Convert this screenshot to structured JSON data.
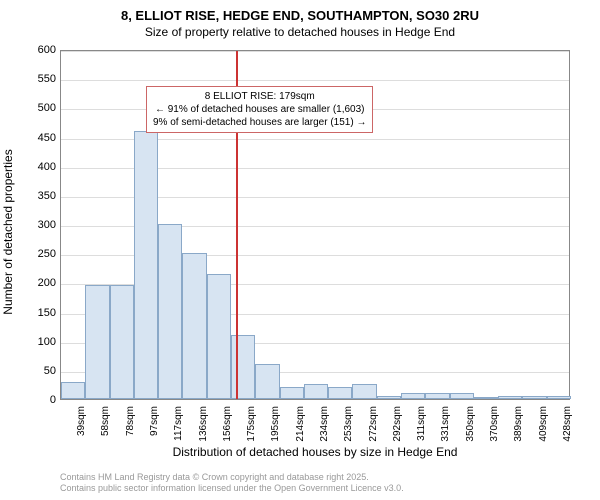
{
  "title": "8, ELLIOT RISE, HEDGE END, SOUTHAMPTON, SO30 2RU",
  "subtitle": "Size of property relative to detached houses in Hedge End",
  "chart": {
    "type": "histogram",
    "ylabel": "Number of detached properties",
    "xlabel": "Distribution of detached houses by size in Hedge End",
    "ylim": [
      0,
      600
    ],
    "ytick_step": 50,
    "xlim_index": [
      0,
      21
    ],
    "x_categories": [
      "39sqm",
      "58sqm",
      "78sqm",
      "97sqm",
      "117sqm",
      "136sqm",
      "156sqm",
      "175sqm",
      "195sqm",
      "214sqm",
      "234sqm",
      "253sqm",
      "272sqm",
      "292sqm",
      "311sqm",
      "331sqm",
      "350sqm",
      "370sqm",
      "389sqm",
      "409sqm",
      "428sqm"
    ],
    "bar_values": [
      30,
      195,
      195,
      460,
      300,
      250,
      215,
      110,
      60,
      20,
      25,
      20,
      25,
      5,
      10,
      10,
      10,
      0,
      5,
      5,
      5
    ],
    "bar_color": "#d7e4f2",
    "bar_border": "#8aa8c8",
    "grid_color": "#dddddd",
    "background_color": "#ffffff",
    "ref_line": {
      "position_index": 7.2,
      "color": "#cc3333"
    },
    "annotation": {
      "lines": [
        "8 ELLIOT RISE: 179sqm",
        "← 91% of detached houses are smaller (1,603)",
        "9% of semi-detached houses are larger (151) →"
      ],
      "border_color": "#cc6666",
      "position_index": 3.5,
      "y_position": 540
    }
  },
  "footer": {
    "line1": "Contains HM Land Registry data © Crown copyright and database right 2025.",
    "line2": "Contains public sector information licensed under the Open Government Licence v3.0."
  }
}
